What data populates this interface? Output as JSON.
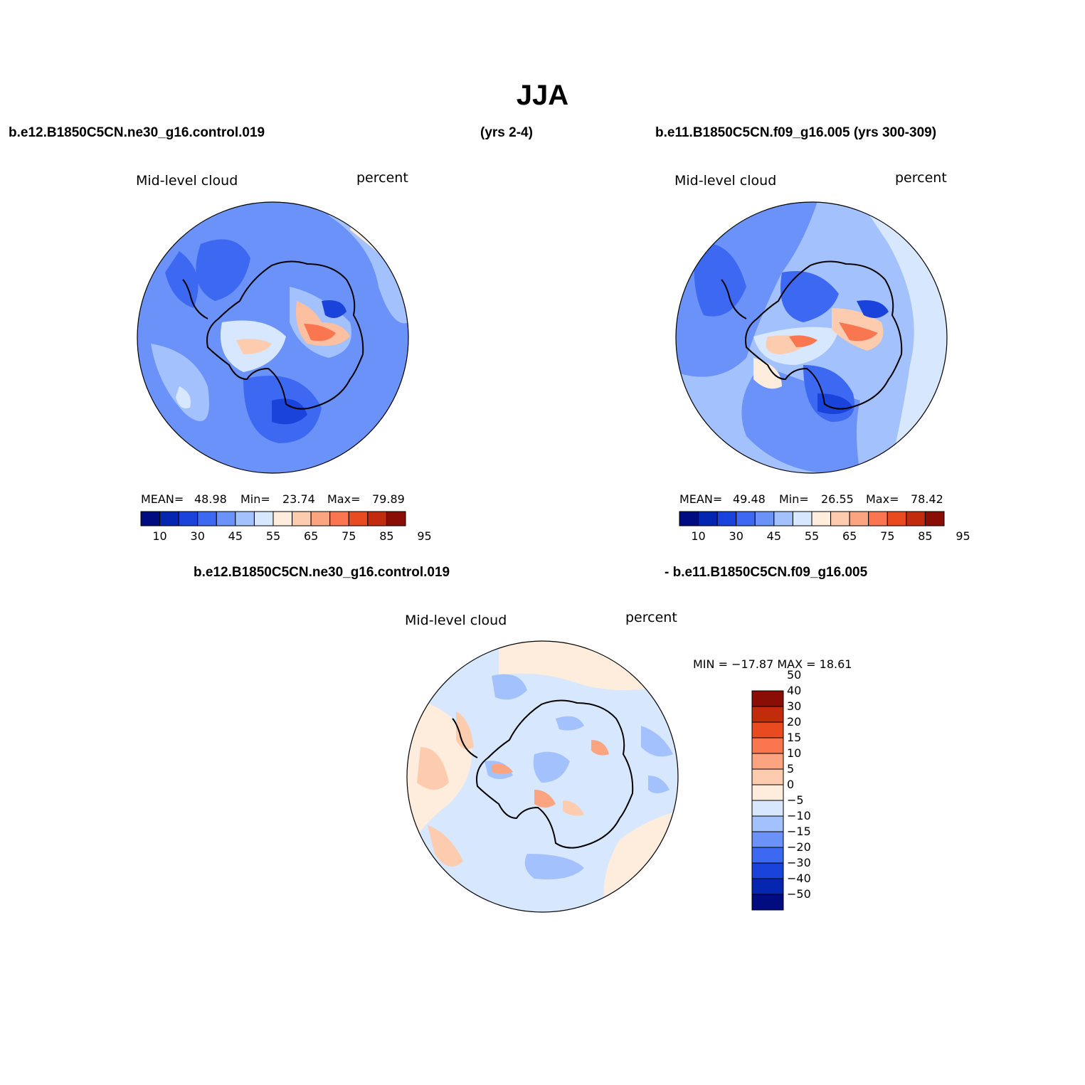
{
  "title": "JJA",
  "header": {
    "case_a": "b.e12.B1850C5CN.ne30_g16.control.019",
    "case_a_years": "(yrs 2-4)",
    "case_b": "b.e11.B1850C5CN.f09_g16.005 (yrs 300-309)",
    "diff_case_a": "b.e12.B1850C5CN.ne30_g16.control.019",
    "diff_case_b": "- b.e11.B1850C5CN.f09_g16.005"
  },
  "panels": [
    {
      "variable": "Mid-level cloud",
      "units": "percent",
      "stats": {
        "mean_label": "MEAN=",
        "mean": "48.98",
        "min_label": "Min=",
        "min": "23.74",
        "max_label": "Max=",
        "max": "79.89"
      }
    },
    {
      "variable": "Mid-level cloud",
      "units": "percent",
      "stats": {
        "mean_label": "MEAN=",
        "mean": "49.48",
        "min_label": "Min=",
        "min": "26.55",
        "max_label": "Max=",
        "max": "78.42"
      }
    },
    {
      "variable": "Mid-level cloud",
      "units": "percent",
      "minmax": "MIN = −17.87 MAX =  18.61"
    }
  ],
  "abs_colorbar": {
    "colors": [
      "#000c80",
      "#0526b0",
      "#1a43db",
      "#3d69f2",
      "#6b92f8",
      "#a3c1fd",
      "#d6e7fe",
      "#feeddc",
      "#fdcbae",
      "#fca37f",
      "#f97650",
      "#ea4a1f",
      "#c22c0c",
      "#8a0e05"
    ],
    "tick_labels": [
      "10",
      "30",
      "45",
      "55",
      "65",
      "75",
      "85",
      "95"
    ]
  },
  "diff_colorbar": {
    "colors": [
      "#000c80",
      "#0526b0",
      "#1a43db",
      "#3d69f2",
      "#6b92f8",
      "#a3c1fd",
      "#d6e7fe",
      "#feeddc",
      "#fdcbae",
      "#fca37f",
      "#f97650",
      "#ea4a1f",
      "#c22c0c",
      "#8a0e05"
    ],
    "tick_labels": [
      "−50",
      "−40",
      "−30",
      "−20",
      "−15",
      "−10",
      "−5",
      "0",
      "5",
      "10",
      "15",
      "20",
      "30",
      "40",
      "50"
    ]
  }
}
